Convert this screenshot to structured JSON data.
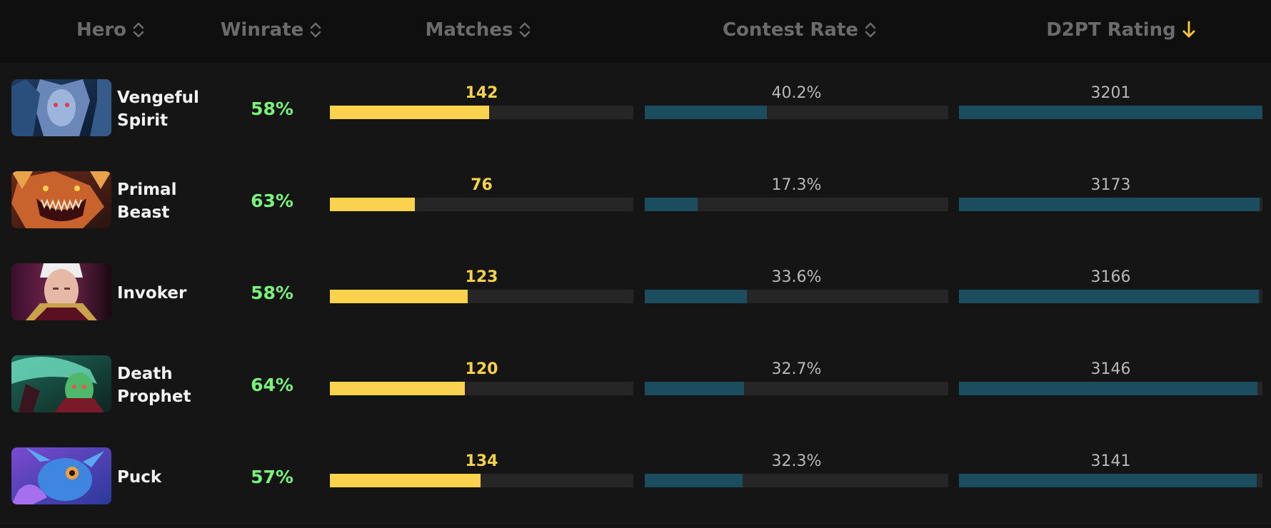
{
  "colors": {
    "background": "#141414",
    "header_background": "#0f0f0f",
    "header_text": "#6b6b6b",
    "hero_name": "#f2f2f2",
    "winrate": "#7bf27b",
    "matches_bar": "#fbd24d",
    "teal_bar": "#1c4d5e",
    "track": "#262626",
    "sort_active": "#f5c33b"
  },
  "header": {
    "columns": [
      {
        "label": "Hero",
        "icon": "sort-updown-icon"
      },
      {
        "label": "Winrate",
        "icon": "sort-updown-icon"
      },
      {
        "label": "Matches",
        "icon": "sort-updown-icon"
      },
      {
        "label": "Contest Rate",
        "icon": "sort-updown-icon"
      },
      {
        "label": "D2PT Rating",
        "icon": "arrow-down-icon"
      }
    ]
  },
  "rows": [
    {
      "hero": "Vengeful Spirit",
      "hero_lines": [
        "Vengeful",
        "Spirit"
      ],
      "portrait_icon": "vengeful-spirit-portrait",
      "winrate": "58%",
      "matches": "142",
      "matches_fraction": 0.525,
      "contest_rate": "40.2%",
      "contest_fraction": 0.402,
      "rating": "3201",
      "rating_fraction": 1.0
    },
    {
      "hero": "Primal Beast",
      "hero_lines": [
        "Primal",
        "Beast"
      ],
      "portrait_icon": "primal-beast-portrait",
      "winrate": "63%",
      "matches": "76",
      "matches_fraction": 0.281,
      "contest_rate": "17.3%",
      "contest_fraction": 0.173,
      "rating": "3173",
      "rating_fraction": 0.991
    },
    {
      "hero": "Invoker",
      "hero_lines": [
        "Invoker"
      ],
      "portrait_icon": "invoker-portrait",
      "winrate": "58%",
      "matches": "123",
      "matches_fraction": 0.455,
      "contest_rate": "33.6%",
      "contest_fraction": 0.336,
      "rating": "3166",
      "rating_fraction": 0.989
    },
    {
      "hero": "Death Prophet",
      "hero_lines": [
        "Death",
        "Prophet"
      ],
      "portrait_icon": "death-prophet-portrait",
      "winrate": "64%",
      "matches": "120",
      "matches_fraction": 0.444,
      "contest_rate": "32.7%",
      "contest_fraction": 0.327,
      "rating": "3146",
      "rating_fraction": 0.983
    },
    {
      "hero": "Puck",
      "hero_lines": [
        "Puck"
      ],
      "portrait_icon": "puck-portrait",
      "winrate": "57%",
      "matches": "134",
      "matches_fraction": 0.496,
      "contest_rate": "32.3%",
      "contest_fraction": 0.323,
      "rating": "3141",
      "rating_fraction": 0.981
    }
  ]
}
